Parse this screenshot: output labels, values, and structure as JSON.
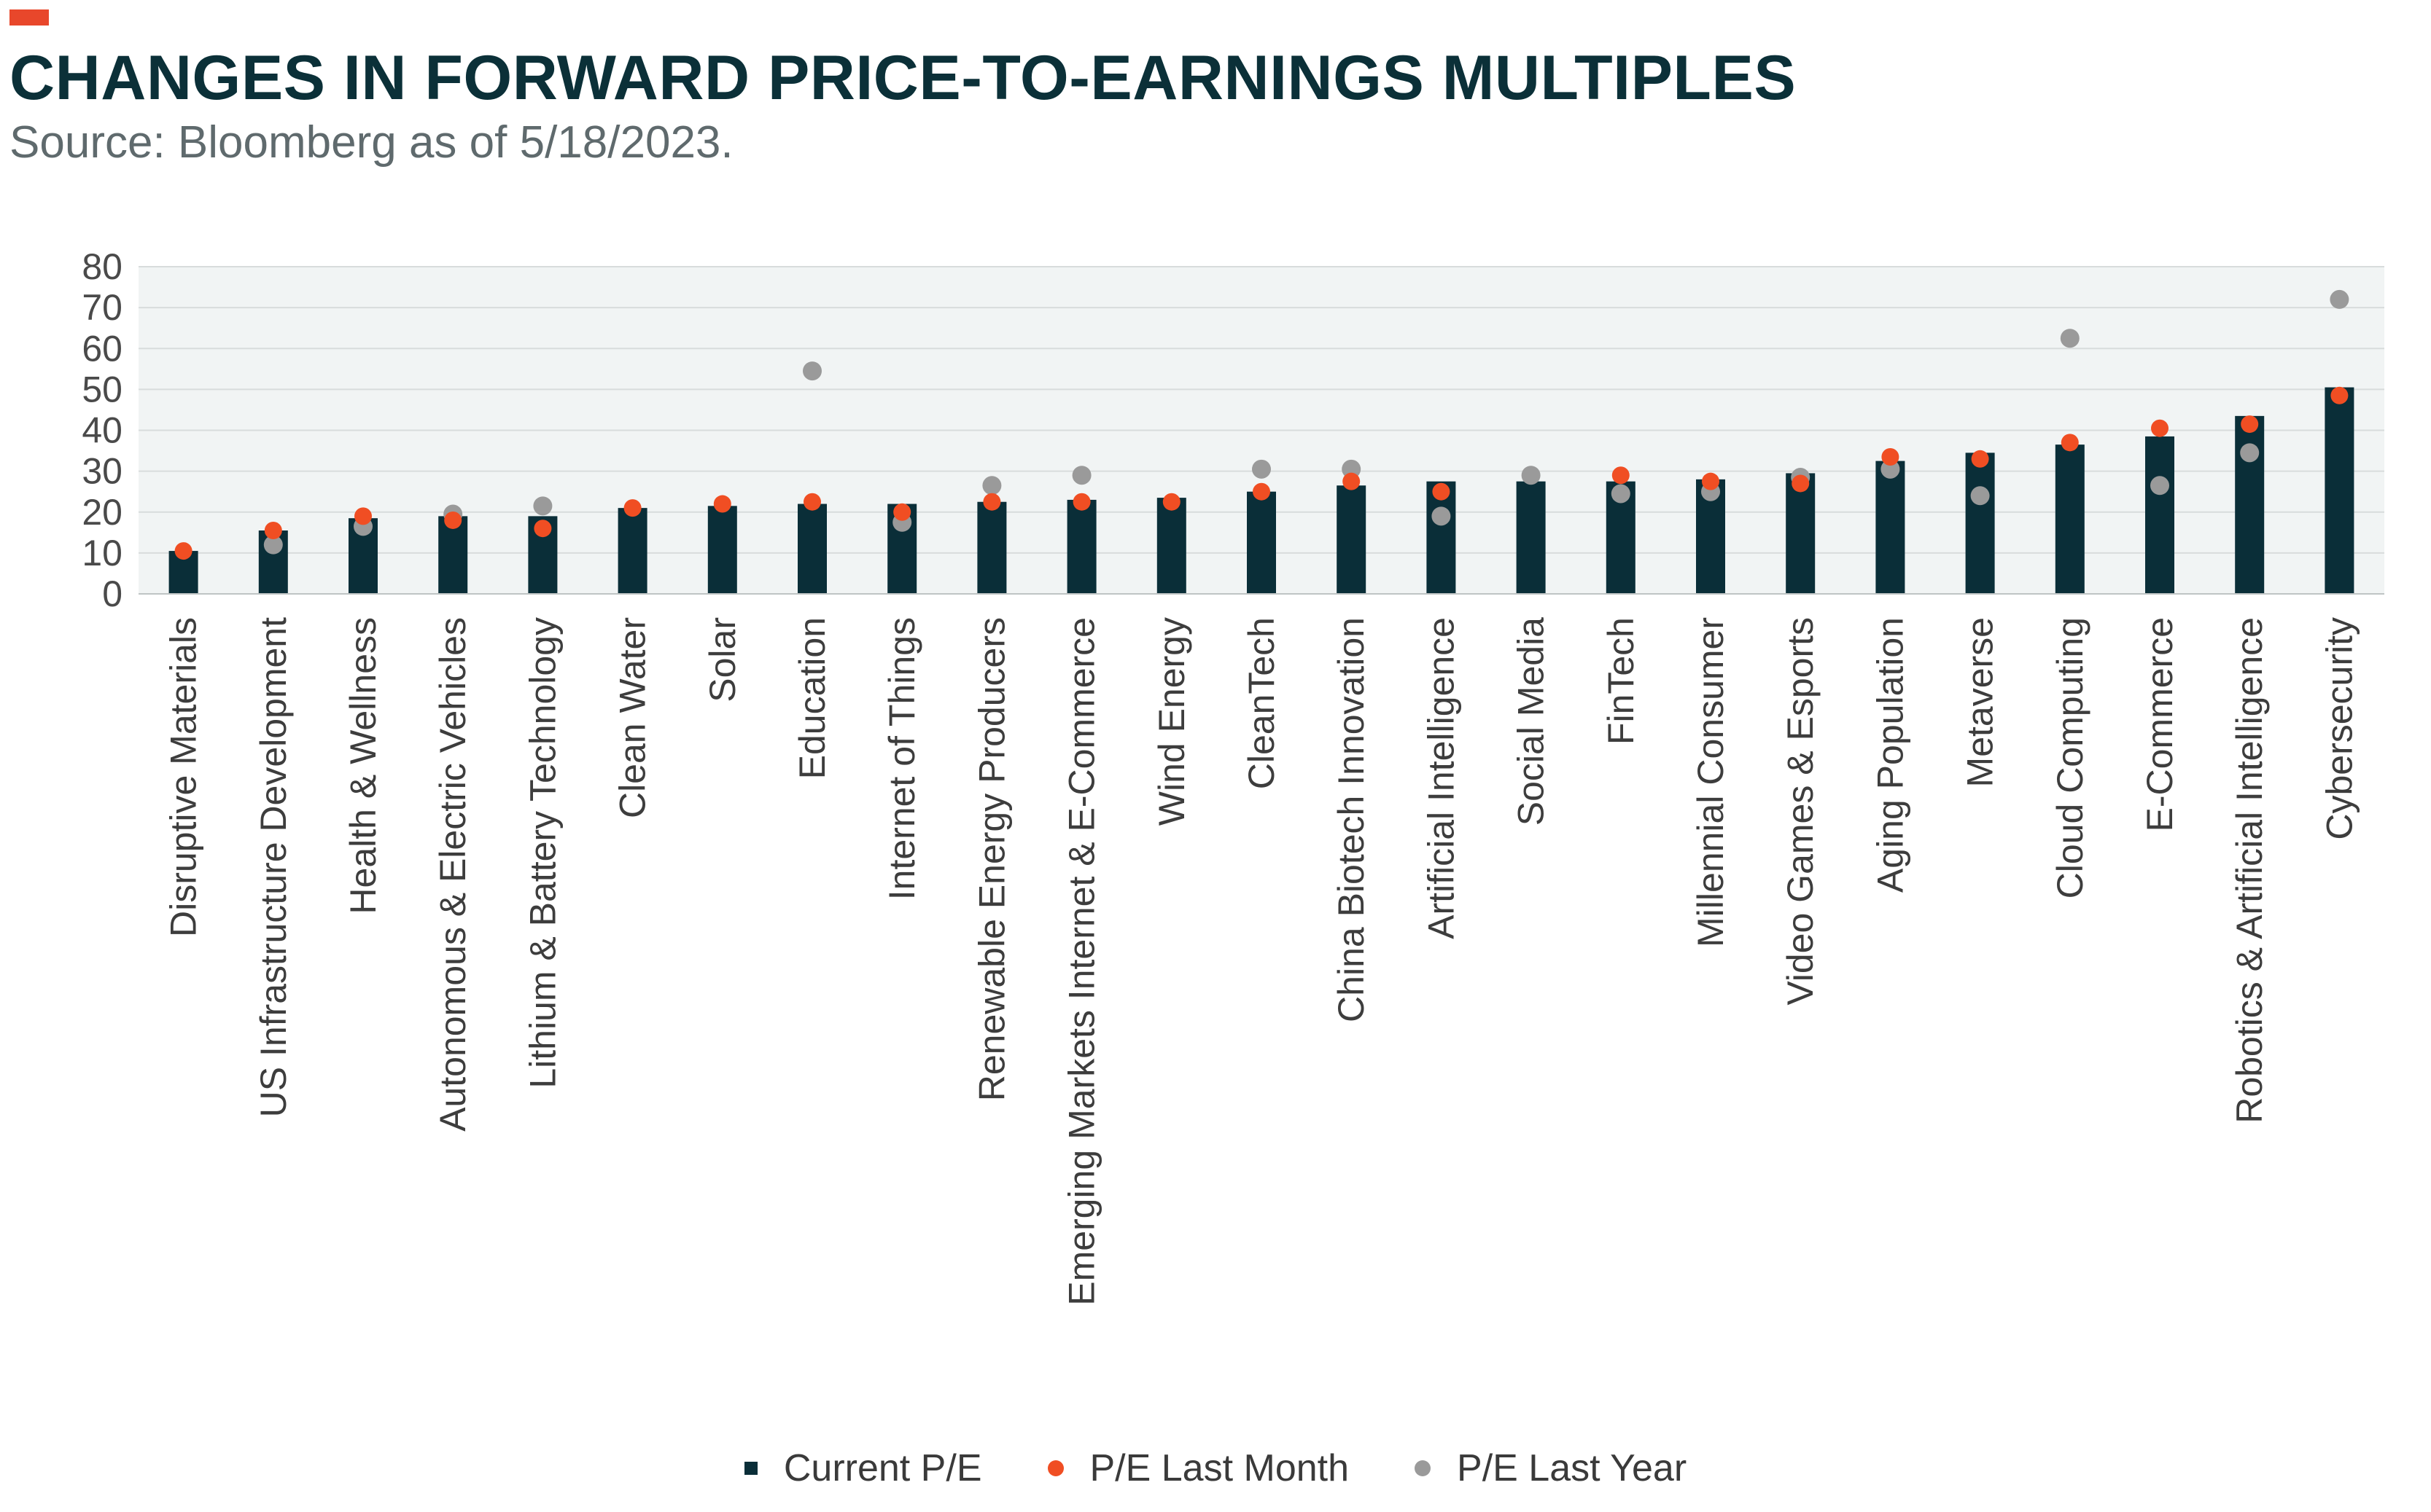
{
  "header": {
    "title": "CHANGES IN FORWARD PRICE-TO-EARNINGS MULTIPLES",
    "subtitle": "Source: Bloomberg as of 5/18/2023."
  },
  "colors": {
    "accent": "#e8472b",
    "bar": "#0a2e38",
    "last_month": "#f04e23",
    "last_year": "#9a9a9a",
    "plot_bg": "#f1f4f4",
    "grid": "#d8dcdc"
  },
  "legend": {
    "current": "Current P/E",
    "last_month": "P/E Last Month",
    "last_year": "P/E Last Year"
  },
  "chart_data": {
    "type": "bar",
    "title": "CHANGES IN FORWARD PRICE-TO-EARNINGS MULTIPLES",
    "xlabel": "",
    "ylabel": "",
    "ylim": [
      0,
      80
    ],
    "yticks": [
      0,
      10,
      20,
      30,
      40,
      50,
      60,
      70,
      80
    ],
    "grid": true,
    "legend_position": "bottom-center",
    "categories": [
      "Disruptive Materials",
      "US Infrastructure Development",
      "Health & Wellness",
      "Autonomous & Electric Vehicles",
      "Lithium & Battery Technology",
      "Clean Water",
      "Solar",
      "Education",
      "Internet of Things",
      "Renewable Energy Producers",
      "Emerging Markets Internet & E-Commerce",
      "Wind Energy",
      "CleanTech",
      "China Biotech Innovation",
      "Artificial Intelligence",
      "Social Media",
      "FinTech",
      "Millennial Consumer",
      "Video Games & Esports",
      "Aging Population",
      "Metaverse",
      "Cloud Computing",
      "E-Commerce",
      "Robotics & Artificial Intelligence",
      "Cybersecurity"
    ],
    "series": [
      {
        "name": "Current P/E",
        "kind": "bar",
        "values": [
          10.5,
          15.5,
          18.5,
          19,
          19,
          21,
          21.5,
          22,
          22,
          22.5,
          23,
          23.5,
          25,
          26.5,
          27.5,
          27.5,
          27.5,
          28,
          29.5,
          32.5,
          34.5,
          36.5,
          38.5,
          43.5,
          50.5
        ]
      },
      {
        "name": "P/E Last Month",
        "kind": "dot",
        "values": [
          10.5,
          15.5,
          19,
          18,
          16,
          21,
          22,
          22.5,
          20,
          22.5,
          22.5,
          22.5,
          25,
          27.5,
          25,
          null,
          29,
          27.5,
          27,
          33.5,
          33,
          37,
          40.5,
          41.5,
          48.5
        ]
      },
      {
        "name": "P/E Last Year",
        "kind": "dot",
        "values": [
          null,
          12,
          16.5,
          19.5,
          21.5,
          null,
          null,
          54.5,
          17.5,
          26.5,
          29,
          null,
          30.5,
          30.5,
          19,
          29,
          24.5,
          25,
          28.5,
          30.5,
          24,
          62.5,
          26.5,
          34.5,
          72
        ]
      }
    ]
  }
}
